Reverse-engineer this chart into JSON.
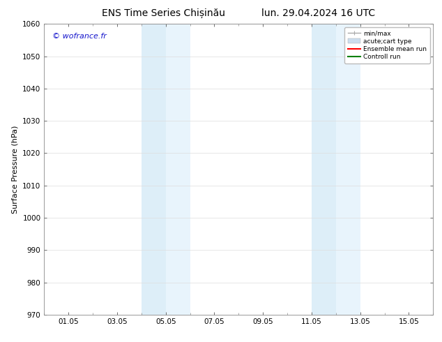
{
  "title_left": "ENS Time Series Chișinău",
  "title_right": "lun. 29.04.2024 16 UTC",
  "ylabel": "Surface Pressure (hPa)",
  "ylim": [
    970,
    1060
  ],
  "yticks": [
    970,
    980,
    990,
    1000,
    1010,
    1020,
    1030,
    1040,
    1050,
    1060
  ],
  "xtick_labels": [
    "01.05",
    "03.05",
    "05.05",
    "07.05",
    "09.05",
    "11.05",
    "13.05",
    "15.05"
  ],
  "xtick_positions": [
    1.0,
    3.0,
    5.0,
    7.0,
    9.0,
    11.0,
    13.0,
    15.0
  ],
  "xlim": [
    0.0,
    16.0
  ],
  "shaded_bands": [
    {
      "xmin": 4.0,
      "xmax": 5.0,
      "color": "#ddeef8"
    },
    {
      "xmin": 5.0,
      "xmax": 6.0,
      "color": "#e8f4fc"
    },
    {
      "xmin": 11.0,
      "xmax": 12.0,
      "color": "#ddeef8"
    },
    {
      "xmin": 12.0,
      "xmax": 13.0,
      "color": "#e8f4fc"
    }
  ],
  "watermark": "© wofrance.fr",
  "watermark_color": "#1515cc",
  "legend_items": [
    {
      "label": "min/max",
      "color": "#aaaaaa",
      "lw": 1
    },
    {
      "label": "acute;cart type",
      "color": "#ccddee",
      "lw": 6
    },
    {
      "label": "Ensemble mean run",
      "color": "#ff0000",
      "lw": 1.5
    },
    {
      "label": "Controll run",
      "color": "#008000",
      "lw": 1.5
    }
  ],
  "bg_color": "#ffffff",
  "plot_bg_color": "#ffffff",
  "grid_color": "#dddddd",
  "title_fontsize": 10,
  "axis_fontsize": 8,
  "tick_fontsize": 7.5
}
